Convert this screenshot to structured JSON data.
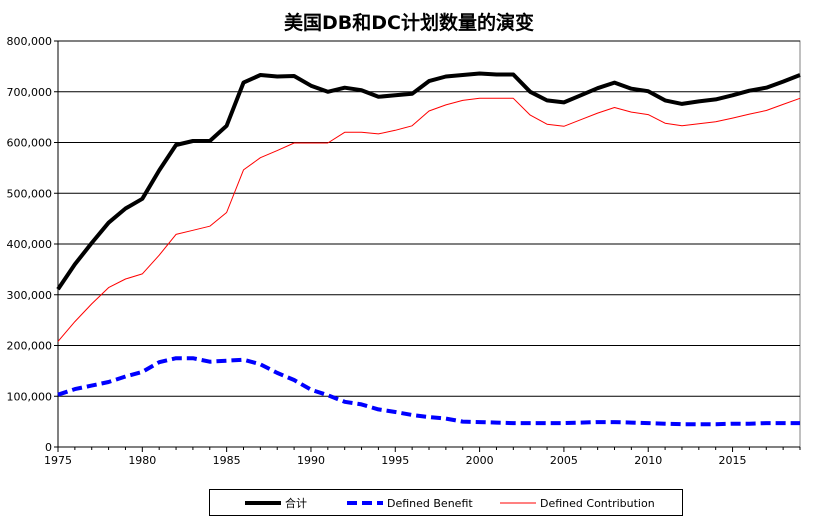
{
  "chart_data": {
    "type": "line",
    "title": "美国DB和DC计划数量的演变",
    "xlabel": "",
    "ylabel": "",
    "xlim": [
      1975,
      2019
    ],
    "ylim": [
      0,
      800000
    ],
    "x_ticks": [
      1975,
      1980,
      1985,
      1990,
      1995,
      2000,
      2005,
      2010,
      2015
    ],
    "y_ticks": [
      "0",
      "100,000",
      "200,000",
      "300,000",
      "400,000",
      "500,000",
      "600,000",
      "700,000",
      "800,000"
    ],
    "grid": "horizontal",
    "legend_position": "bottom",
    "x": [
      1975,
      1976,
      1977,
      1978,
      1979,
      1980,
      1981,
      1982,
      1983,
      1984,
      1985,
      1986,
      1987,
      1988,
      1989,
      1990,
      1991,
      1992,
      1993,
      1994,
      1995,
      1996,
      1997,
      1998,
      1999,
      2000,
      2001,
      2002,
      2003,
      2004,
      2005,
      2006,
      2007,
      2008,
      2009,
      2010,
      2011,
      2012,
      2013,
      2014,
      2015,
      2016,
      2017,
      2018,
      2019
    ],
    "series": [
      {
        "name": "合计",
        "color": "#000000",
        "style": "solid-thick",
        "values": [
          311000,
          360000,
          402000,
          442000,
          470000,
          489000,
          545000,
          595000,
          603000,
          603000,
          633000,
          718000,
          733000,
          730000,
          731000,
          712000,
          700000,
          708000,
          703000,
          690000,
          693000,
          696000,
          721000,
          730000,
          733000,
          736000,
          734000,
          734000,
          700000,
          683000,
          679000,
          693000,
          707000,
          718000,
          706000,
          701000,
          683000,
          676000,
          681000,
          685000,
          693000,
          702000,
          708000,
          720000,
          733000
        ]
      },
      {
        "name": "Defined Benefit",
        "color": "#0000ff",
        "style": "dashed-thick",
        "values": [
          103000,
          114000,
          121000,
          128000,
          139000,
          148000,
          167000,
          175000,
          175000,
          168000,
          170000,
          172000,
          163000,
          146000,
          132000,
          113000,
          102000,
          89000,
          84000,
          74000,
          69000,
          63000,
          59000,
          56000,
          50000,
          49000,
          48000,
          47000,
          47000,
          47000,
          47000,
          48000,
          49000,
          49000,
          48000,
          47000,
          46000,
          45000,
          45000,
          45000,
          46000,
          46000,
          47000,
          47000,
          47000
        ]
      },
      {
        "name": "Defined Contribution",
        "color": "#ff0000",
        "style": "solid-thin",
        "values": [
          208000,
          247000,
          282000,
          314000,
          331000,
          341000,
          378000,
          419000,
          427000,
          435000,
          462000,
          546000,
          570000,
          584000,
          599000,
          599000,
          599000,
          620000,
          620000,
          617000,
          624000,
          633000,
          662000,
          674000,
          683000,
          687000,
          687000,
          687000,
          654000,
          636000,
          632000,
          645000,
          658000,
          669000,
          660000,
          655000,
          638000,
          633000,
          637000,
          641000,
          648000,
          656000,
          663000,
          675000,
          687000
        ]
      }
    ]
  }
}
